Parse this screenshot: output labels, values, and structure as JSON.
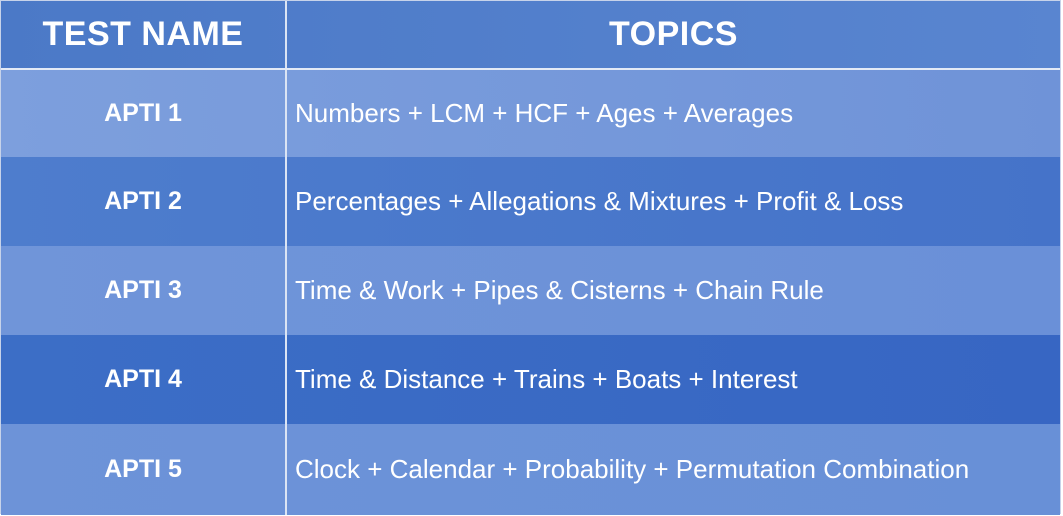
{
  "table": {
    "headers": {
      "test_name": "TEST NAME",
      "topics": "TOPICS"
    },
    "rows": [
      {
        "test_name": "APTI 1",
        "topics": "Numbers + LCM + HCF + Ages + Averages"
      },
      {
        "test_name": "APTI 2",
        "topics": "Percentages + Allegations & Mixtures + Profit & Loss"
      },
      {
        "test_name": "APTI 3",
        "topics": "Time & Work + Pipes & Cisterns + Chain Rule"
      },
      {
        "test_name": "APTI 4",
        "topics": "Time & Distance + Trains + Boats + Interest"
      },
      {
        "test_name": "APTI 5",
        "topics": "Clock + Calendar + Probability + Permutation Combination"
      }
    ]
  },
  "colors": {
    "header_bg": "#4f7fcb",
    "row_light": "#7297da",
    "row_dark": "#4170c8",
    "text": "#ffffff"
  }
}
